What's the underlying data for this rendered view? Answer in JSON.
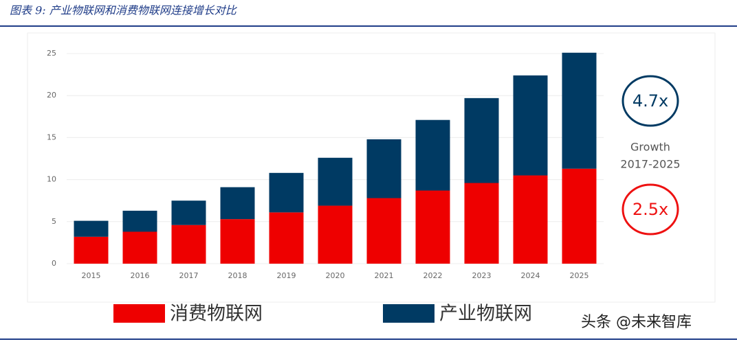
{
  "chart_data": {
    "type": "stacked-bar",
    "title": "图表 9: 产业物联网和消费物联网连接增长对比",
    "categories": [
      "2015",
      "2016",
      "2017",
      "2018",
      "2019",
      "2020",
      "2021",
      "2022",
      "2023",
      "2024",
      "2025"
    ],
    "series": [
      {
        "name": "消费物联网",
        "color": "#ee0000",
        "values": [
          3.2,
          3.8,
          4.6,
          5.3,
          6.1,
          6.9,
          7.8,
          8.7,
          9.6,
          10.5,
          11.3
        ]
      },
      {
        "name": "产业物联网",
        "color": "#003a63",
        "values": [
          1.9,
          2.5,
          2.9,
          3.8,
          4.7,
          5.7,
          7.0,
          8.4,
          10.1,
          11.9,
          13.8
        ]
      }
    ],
    "ylim": [
      0,
      25
    ],
    "yticks": [
      0,
      5,
      10,
      15,
      20,
      25
    ],
    "grid": true,
    "annotations": {
      "industrial_growth": "4.7x",
      "growth_label": [
        "Growth",
        "2017-2025"
      ],
      "consumer_growth": "2.5x"
    },
    "watermark": "头条 @未来智库"
  }
}
